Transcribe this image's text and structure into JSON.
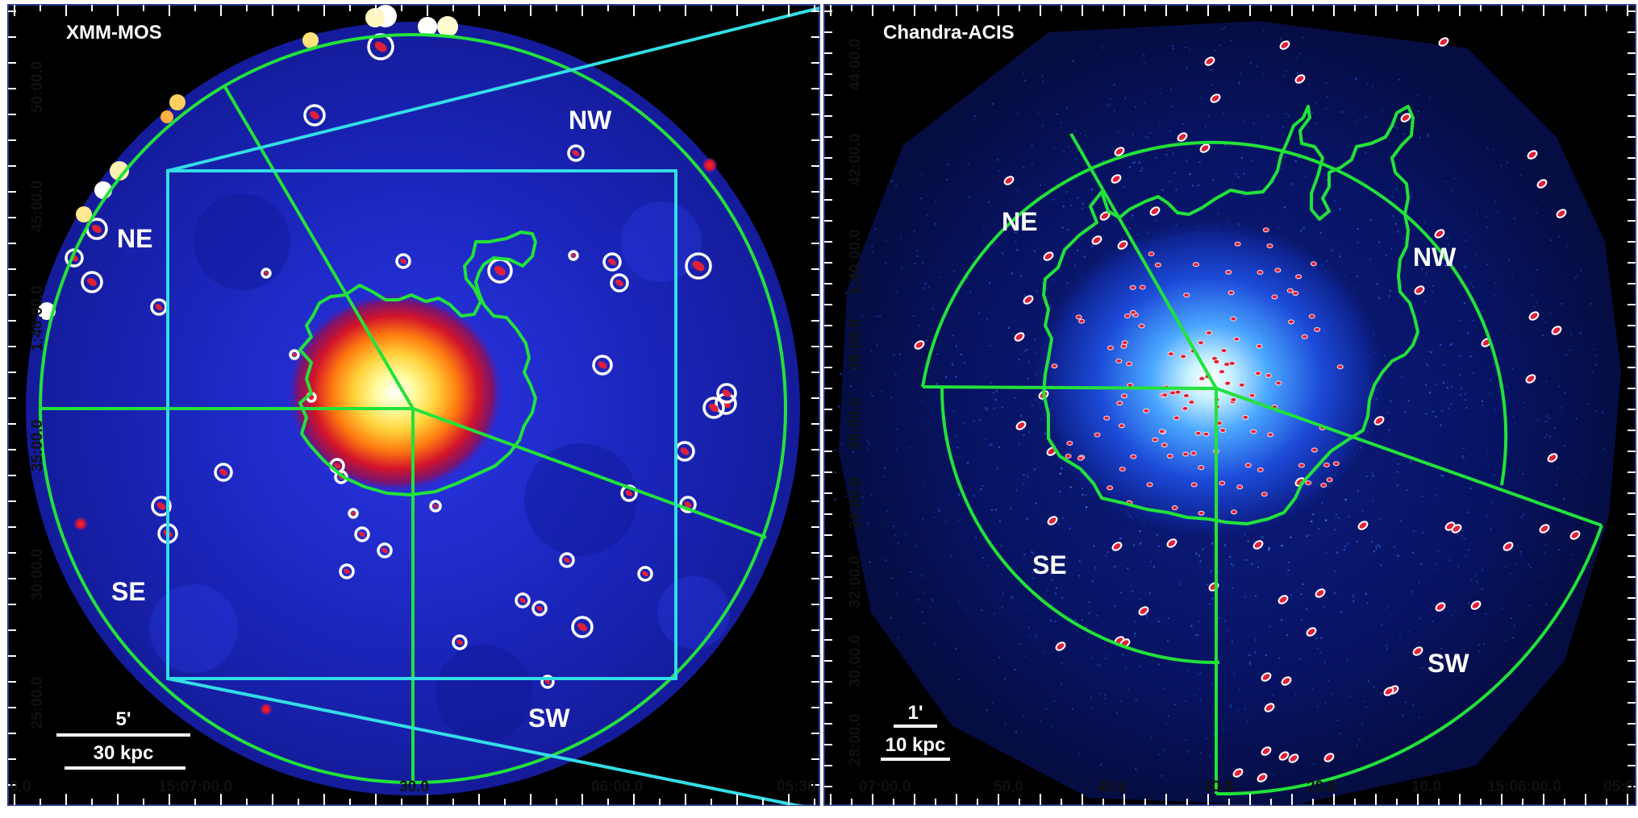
{
  "left_panel": {
    "instrument": "XMM-MOS",
    "regions": {
      "ne": "NE",
      "nw": "NW",
      "se": "SE",
      "sw": "SW"
    },
    "scalebar": {
      "angular": "5'",
      "physical": "30 kpc"
    },
    "ra_ticks": [
      "0.0",
      "15:07:00.0",
      "30.0",
      "06:00.0",
      "05:30"
    ],
    "dec_ticks": [
      "50:00.0",
      "45:00.0",
      "1:40:00.0",
      "35:00.0",
      "30:00.0",
      "25:00.0"
    ]
  },
  "right_panel": {
    "instrument": "Chandra-ACIS",
    "regions": {
      "ne": "NE",
      "nw": "NW",
      "se": "SE",
      "sw": "SW"
    },
    "scalebar": {
      "angular": "1'",
      "physical": "10 kpc"
    },
    "ra_ticks": [
      "07:00.0",
      "50.0",
      "40.0",
      "30.0",
      "20.0",
      "10.0",
      "15:06:00.0",
      "05:5"
    ],
    "dec_ticks": [
      "44:00.0",
      "42:00.0",
      "1:40:00.0",
      "38:00.0",
      "36:00.0",
      "34:00.0",
      "32:00.0",
      "30:00.0",
      "28:00.0"
    ]
  },
  "colors": {
    "sector_lines": "#22e23a",
    "zoom_box": "#33dde6",
    "source_circles": "#ffffff",
    "source_core": "#e0203a"
  }
}
